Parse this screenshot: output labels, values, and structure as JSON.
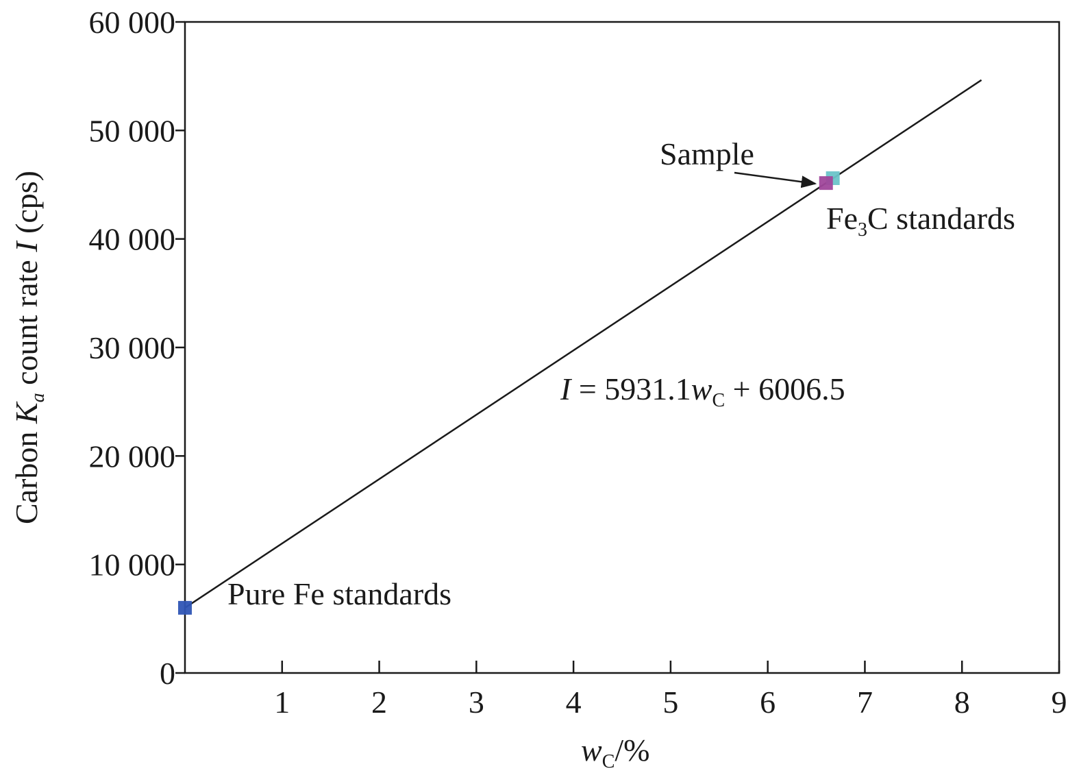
{
  "chart_data": {
    "type": "scatter",
    "title": "",
    "xlabel": {
      "var": "w",
      "sub": "C",
      "rest": "/%"
    },
    "ylabel": {
      "pre": "Carbon ",
      "k": "K",
      "ksub": "a",
      "mid": " count rate ",
      "i": "I",
      "post": " (cps)"
    },
    "xlim": [
      0,
      9
    ],
    "ylim": [
      0,
      60000
    ],
    "x_ticks": [
      1,
      2,
      3,
      4,
      5,
      6,
      7,
      8,
      9
    ],
    "x_tick_labels": [
      "1",
      "2",
      "3",
      "4",
      "5",
      "6",
      "7",
      "8",
      "9"
    ],
    "y_ticks": [
      0,
      10000,
      20000,
      30000,
      40000,
      50000,
      60000
    ],
    "y_tick_labels": [
      "0",
      "10 000",
      "20 000",
      "30 000",
      "40 000",
      "50 000",
      "60 000"
    ],
    "grid": false,
    "series": [
      {
        "name": "Pure Fe standards",
        "color": "#2f55b5",
        "points": [
          [
            0,
            6006.5
          ]
        ]
      },
      {
        "name": "Fe3C standards",
        "color": "#6cc4c9",
        "points": [
          [
            6.67,
            45600
          ]
        ]
      },
      {
        "name": "Sample",
        "color": "#a0479b",
        "points": [
          [
            6.6,
            45150
          ]
        ]
      }
    ],
    "fit_line": {
      "slope": 5931.1,
      "intercept": 6006.5,
      "x_range": [
        0,
        8.2
      ],
      "color": "#1a1a1a"
    },
    "annotations": {
      "pure_fe": "Pure Fe standards",
      "fe3c": {
        "pre": "Fe",
        "sub": "3",
        "post": "C standards"
      },
      "sample": "Sample",
      "equation": {
        "lhs": "I",
        "eq": " = 5931.1",
        "var": "w",
        "sub": "C",
        "rhs": " + 6006.5"
      }
    }
  }
}
